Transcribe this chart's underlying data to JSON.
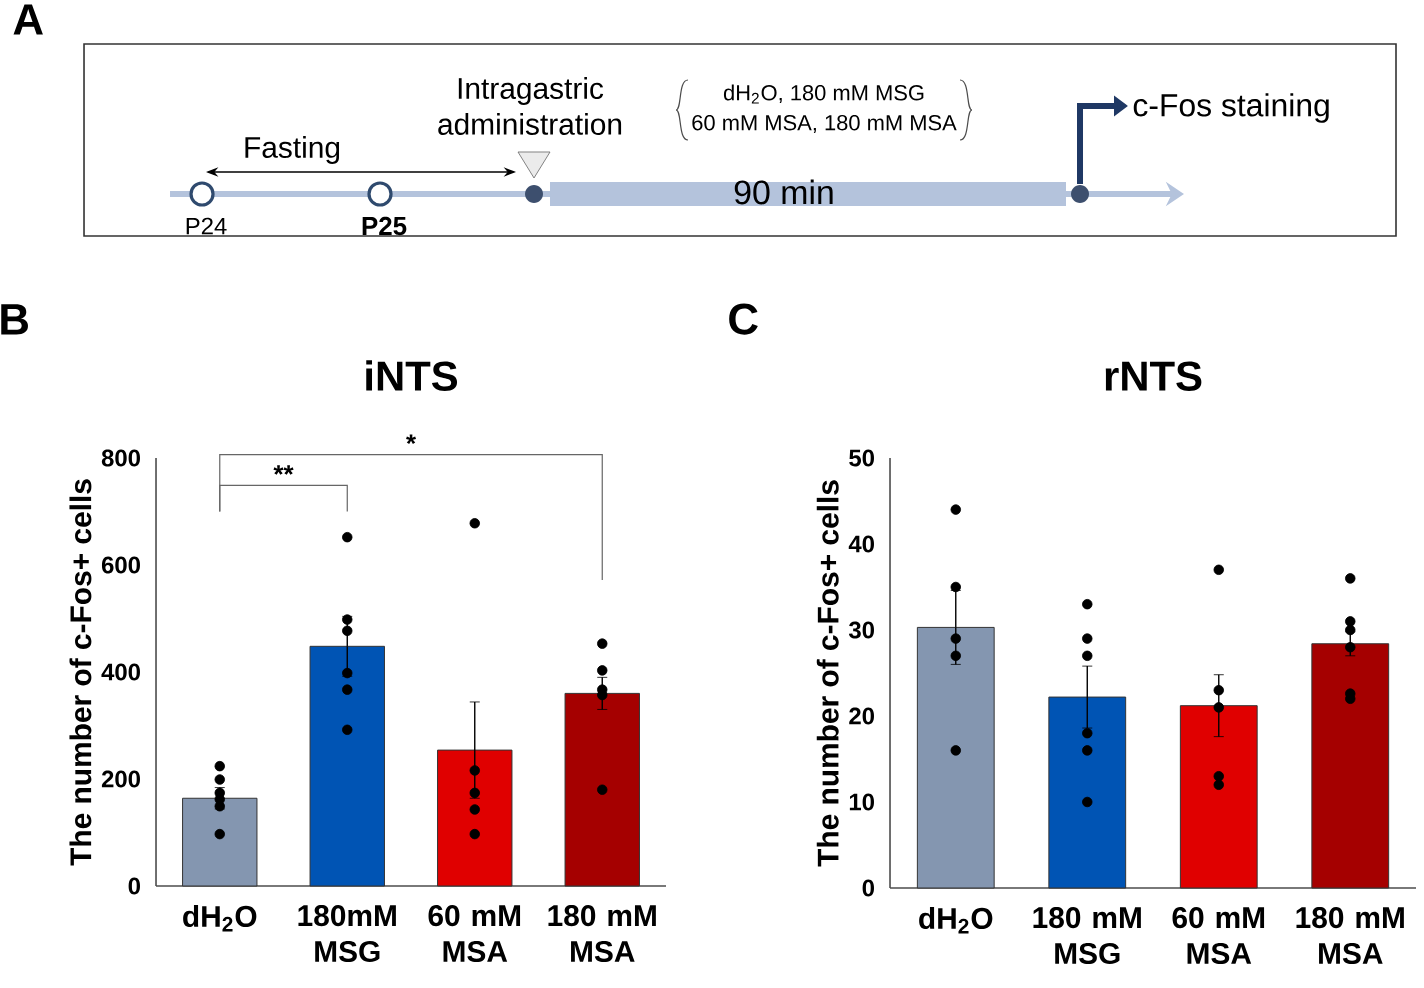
{
  "chart_data": [
    {
      "type": "other",
      "annotations": [
        "A",
        "Fasting",
        "Intragastric administration",
        "dH$_{2}$O, 180 mM MSG",
        "60 mM MSA, 180 mM MSA",
        "90 min",
        "c-Fos staining",
        "P24",
        "P25"
      ]
    },
    {
      "type": "bar",
      "title": "iNTS",
      "ylabel": "The number of c-Fos+ cells",
      "annotations": [
        "B",
        "**",
        "*"
      ],
      "categories": [
        "dH$_{2}$O",
        "180mM MSG",
        "60 mM MSA",
        "180 mM MSA"
      ],
      "ylim": [
        0,
        800
      ],
      "yticks": [
        0,
        200,
        400,
        600,
        800
      ],
      "series": [
        {
          "type": "bar",
          "values": [
            164,
            448,
            254,
            360
          ],
          "colors": [
            "#8496b0",
            "#0054b4",
            "#e00000",
            "#a50000"
          ],
          "errors": [
            20,
            56,
            90,
            30
          ]
        },
        {
          "type": "scatter",
          "marker": "circle",
          "color": "#000000",
          "x": [
            "dH$_{2}$O",
            "dH$_{2}$O",
            "dH$_{2}$O",
            "dH$_{2}$O",
            "dH$_{2}$O",
            "dH$_{2}$O",
            "180mM MSG",
            "180mM MSG",
            "180mM MSG",
            "180mM MSG",
            "180mM MSG",
            "180mM MSG",
            "60 mM MSA",
            "60 mM MSA",
            "60 mM MSA",
            "60 mM MSA",
            "60 mM MSA",
            "180 mM MSA",
            "180 mM MSA",
            "180 mM MSA",
            "180 mM MSA",
            "180 mM MSA"
          ],
          "values": [
            224,
            199,
            174,
            162,
            149,
            97,
            652,
            498,
            477,
            398,
            367,
            292,
            678,
            216,
            174,
            143,
            97,
            453,
            403,
            367,
            357,
            180
          ]
        }
      ]
    },
    {
      "type": "bar",
      "title": "rNTS",
      "ylabel": "The number of c-Fos+ cells",
      "annotations": [
        "C"
      ],
      "categories": [
        "dH$_{2}$O",
        "180 mM MSG",
        "60 mM MSA",
        "180 mM MSA"
      ],
      "ylim": [
        0,
        50
      ],
      "yticks": [
        0,
        10,
        20,
        30,
        40,
        50
      ],
      "series": [
        {
          "type": "bar",
          "values": [
            30.3,
            22.2,
            21.2,
            28.4
          ],
          "colors": [
            "#8496b0",
            "#0054b4",
            "#e00000",
            "#a50000"
          ],
          "errors": [
            4.3,
            3.6,
            3.6,
            1.4
          ]
        },
        {
          "type": "scatter",
          "marker": "circle",
          "color": "#000000",
          "x": [
            "dH$_{2}$O",
            "dH$_{2}$O",
            "dH$_{2}$O",
            "dH$_{2}$O",
            "dH$_{2}$O",
            "180 mM MSG",
            "180 mM MSG",
            "180 mM MSG",
            "180 mM MSG",
            "180 mM MSG",
            "180 mM MSG",
            "60 mM MSA",
            "60 mM MSA",
            "60 mM MSA",
            "60 mM MSA",
            "60 mM MSA",
            "180 mM MSA",
            "180 mM MSA",
            "180 mM MSA",
            "180 mM MSA",
            "180 mM MSA",
            "180 mM MSA"
          ],
          "values": [
            44,
            35,
            29,
            27,
            16,
            33,
            29,
            27,
            18,
            16,
            10,
            37,
            23,
            21,
            13,
            12,
            36,
            31,
            30,
            28,
            22.6,
            22
          ]
        }
      ]
    }
  ]
}
